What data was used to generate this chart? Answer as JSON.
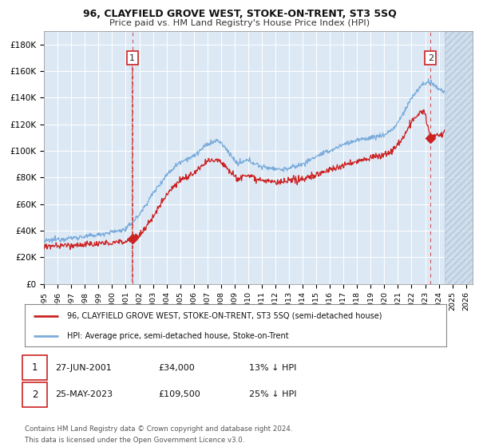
{
  "title": "96, CLAYFIELD GROVE WEST, STOKE-ON-TRENT, ST3 5SQ",
  "subtitle": "Price paid vs. HM Land Registry's House Price Index (HPI)",
  "ylabel_ticks": [
    "£0",
    "£20K",
    "£40K",
    "£60K",
    "£80K",
    "£100K",
    "£120K",
    "£140K",
    "£160K",
    "£180K"
  ],
  "ylim": [
    0,
    190000
  ],
  "xlim_start": 1995.0,
  "xlim_end": 2026.5,
  "sale1_date": 2001.486,
  "sale1_price": 34000,
  "sale1_label": "1",
  "sale2_date": 2023.397,
  "sale2_price": 109500,
  "sale2_label": "2",
  "hpi_color": "#7aabdb",
  "price_color": "#cc2222",
  "sale_dot_color": "#cc2222",
  "background_color": "#dce9f5",
  "grid_color": "#ffffff",
  "legend_line1": "96, CLAYFIELD GROVE WEST, STOKE-ON-TRENT, ST3 5SQ (semi-detached house)",
  "legend_line2": "HPI: Average price, semi-detached house, Stoke-on-Trent",
  "note1_label": "1",
  "note1_date": "27-JUN-2001",
  "note1_price": "£34,000",
  "note1_hpi": "13% ↓ HPI",
  "note2_label": "2",
  "note2_date": "25-MAY-2023",
  "note2_price": "£109,500",
  "note2_hpi": "25% ↓ HPI",
  "footer": "Contains HM Land Registry data © Crown copyright and database right 2024.\nThis data is licensed under the Open Government Licence v3.0.",
  "future_start": 2024.42
}
